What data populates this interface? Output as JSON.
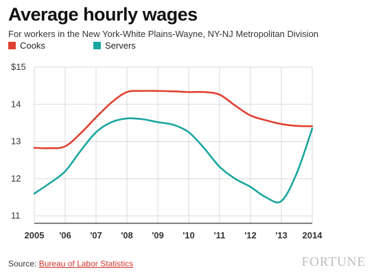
{
  "chart_data": {
    "type": "line",
    "title": "Average hourly wages",
    "subtitle": "For workers in the New York-White Plains-Wayne, NY-NJ Metropolitan Division",
    "x": [
      2005,
      2006,
      2007,
      2008,
      2009,
      2010,
      2011,
      2012,
      2013,
      2014
    ],
    "x_tick_labels": [
      "2005",
      "'06",
      "'07",
      "'08",
      "'09",
      "'10",
      "'11",
      "'12",
      "'13",
      "2014"
    ],
    "y_tick_labels": [
      "$15",
      "14",
      "13",
      "12",
      "11"
    ],
    "ylim": [
      10.8,
      15.0
    ],
    "y_ticks": [
      15,
      14,
      13,
      12,
      11
    ],
    "grid": true,
    "legend_position": "top-left",
    "series": [
      {
        "name": "Cooks",
        "color": "#e0402f",
        "x": [
          2005,
          2005.5,
          2006,
          2006.5,
          2007,
          2007.5,
          2008,
          2008.5,
          2009,
          2009.5,
          2010,
          2010.5,
          2011,
          2011.5,
          2012,
          2012.5,
          2013,
          2013.5,
          2014
        ],
        "values": [
          12.83,
          12.82,
          12.87,
          13.22,
          13.65,
          14.05,
          14.33,
          14.36,
          14.36,
          14.35,
          14.33,
          14.33,
          14.26,
          13.97,
          13.7,
          13.57,
          13.47,
          13.42,
          13.41
        ]
      },
      {
        "name": "Servers",
        "color": "#1aa6a0",
        "x": [
          2005,
          2005.5,
          2006,
          2006.5,
          2007,
          2007.5,
          2008,
          2008.5,
          2009,
          2009.5,
          2010,
          2010.5,
          2011,
          2011.5,
          2012,
          2012.5,
          2013,
          2013.5,
          2014
        ],
        "values": [
          11.6,
          11.88,
          12.2,
          12.75,
          13.25,
          13.52,
          13.62,
          13.6,
          13.52,
          13.45,
          13.25,
          12.82,
          12.32,
          12.0,
          11.78,
          11.5,
          11.4,
          12.15,
          13.35
        ]
      }
    ]
  },
  "source": {
    "label": "Source:",
    "link_text": "Bureau of Labor Statistics"
  },
  "brand": {
    "logo_text": "FORTUNE"
  },
  "colors": {
    "grid": "#d9d9d9",
    "axis": "#333333",
    "tick_text": "#333333"
  }
}
